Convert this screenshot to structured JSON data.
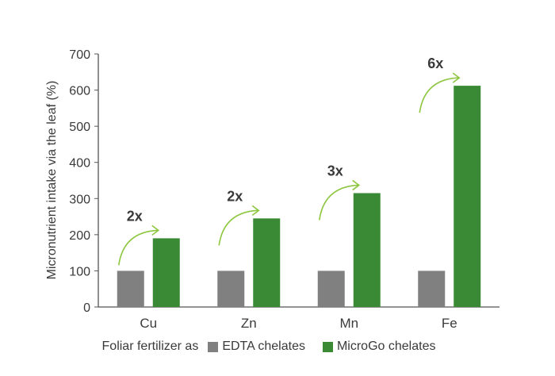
{
  "chart_data": {
    "type": "bar",
    "categories": [
      "Cu",
      "Zn",
      "Mn",
      "Fe"
    ],
    "series": [
      {
        "name": "EDTA chelates",
        "values": [
          100,
          100,
          100,
          100
        ],
        "color": "#808080"
      },
      {
        "name": "MicroGo chelates",
        "values": [
          190,
          245,
          315,
          612
        ],
        "color": "#3a8a35"
      }
    ],
    "multipliers": [
      "2x",
      "2x",
      "3x",
      "6x"
    ],
    "arrow_color": "#8dc63f",
    "xlabel": "",
    "ylabel": "Micronutrient intake via the leaf (%)",
    "ylim": [
      0,
      700
    ],
    "yticks": [
      0,
      100,
      200,
      300,
      400,
      500,
      600,
      700
    ],
    "grid": false,
    "legend_position": "bottom",
    "legend_lead": "Foliar fertilizer as"
  }
}
